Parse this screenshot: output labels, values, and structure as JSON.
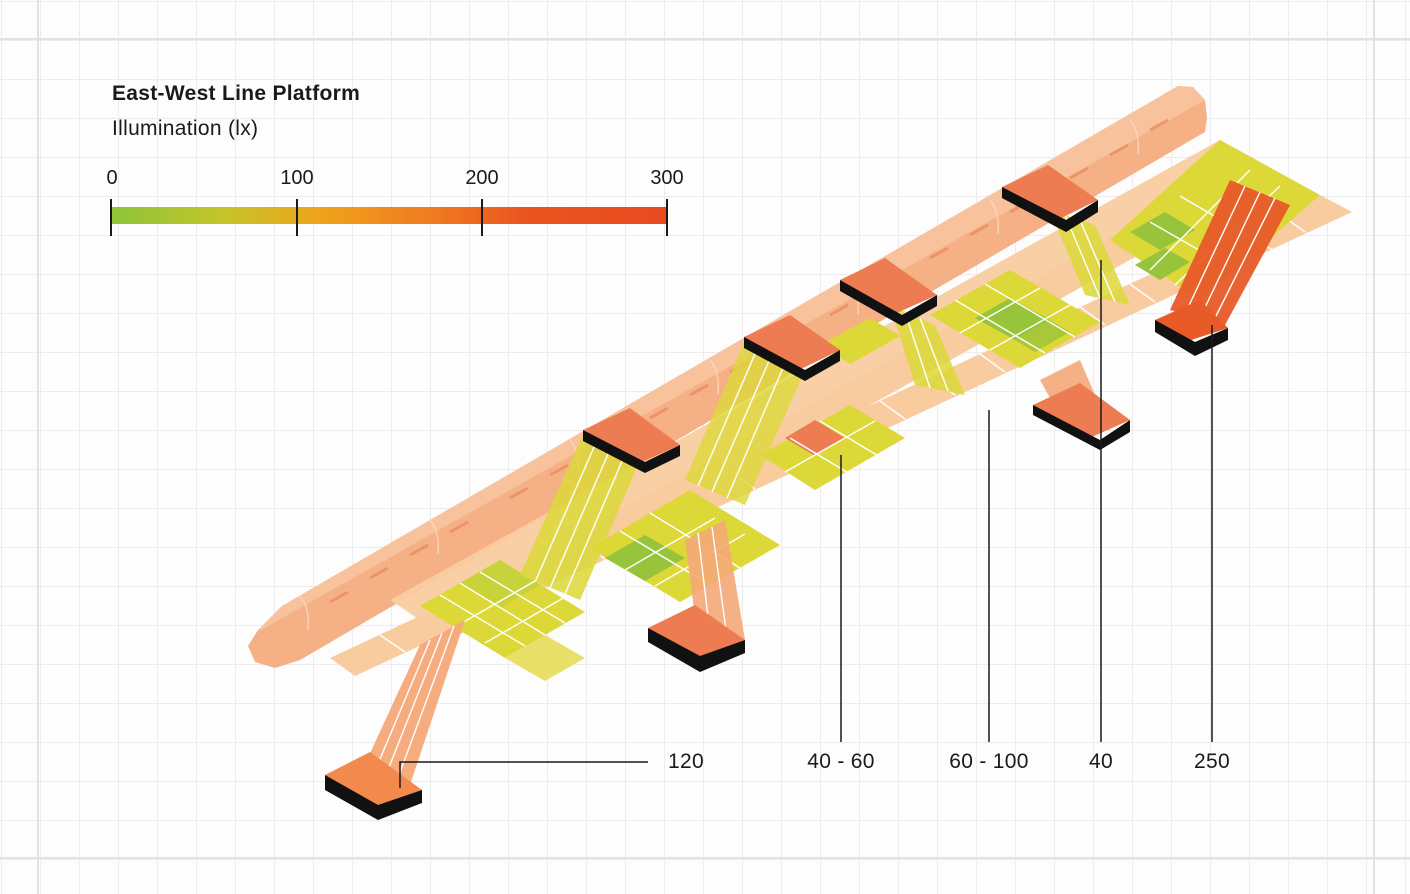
{
  "title": "East-West Line Platform",
  "subtitle": "Illumination (lx)",
  "scale": {
    "ticks": [
      "0",
      "100",
      "200",
      "300"
    ],
    "min": 0,
    "max": 300
  },
  "callouts": [
    {
      "label": "120"
    },
    {
      "label": "40 - 60"
    },
    {
      "label": "60 - 100"
    },
    {
      "label": "40"
    },
    {
      "label": "250"
    }
  ],
  "colors": {
    "green": "#98c43c",
    "yellow_green": "#c8d23a",
    "yellow": "#dcd838",
    "light_yellow": "#e8e068",
    "peach": "#f9cca0",
    "light_orange": "#f4a878",
    "orange": "#ee7c52",
    "red_orange": "#e85a28",
    "black": "#111111"
  }
}
